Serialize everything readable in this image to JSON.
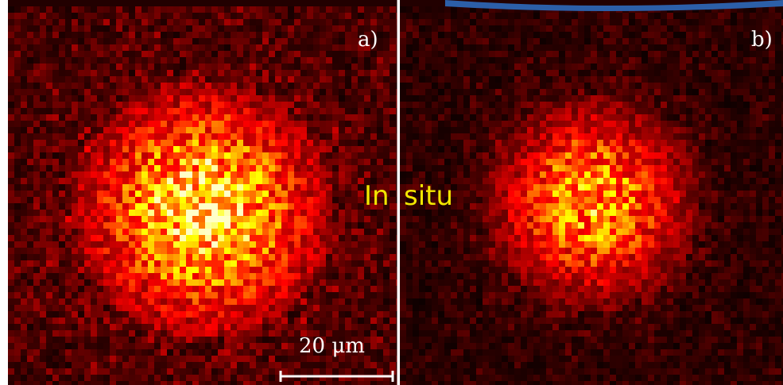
{
  "panels": [
    {
      "label": "a)"
    },
    {
      "label": "b)"
    }
  ],
  "annotation": {
    "left": "In",
    "right": "situ"
  },
  "scale_bar": {
    "label": "20 μm"
  }
}
